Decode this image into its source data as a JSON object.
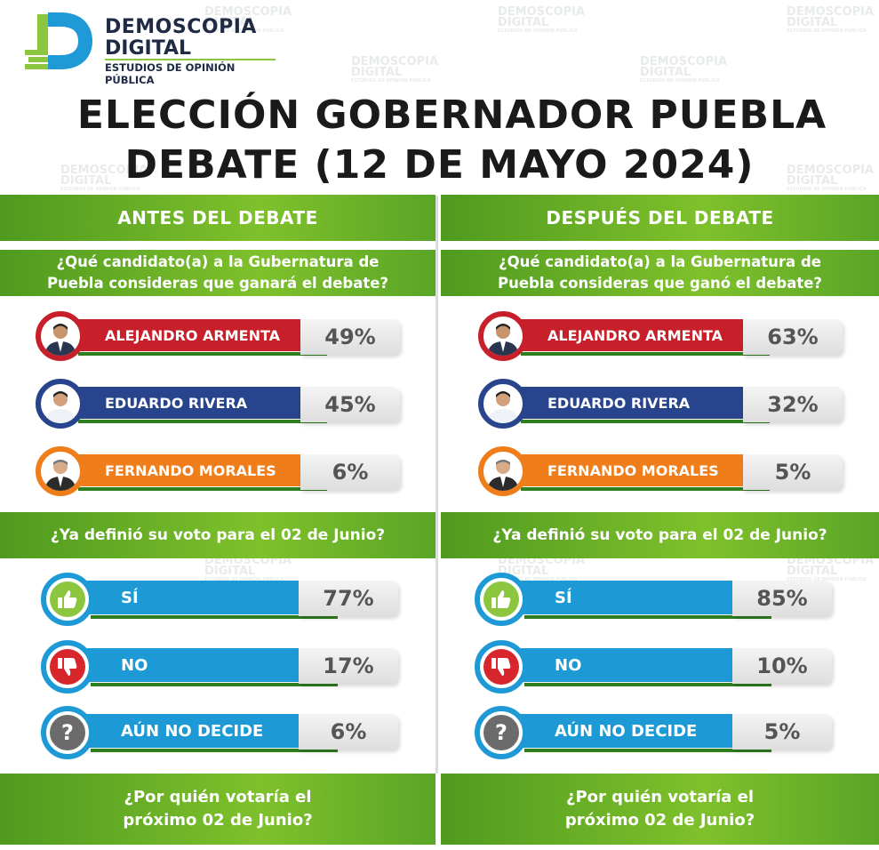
{
  "brand": {
    "line1": "DEMOSCOPIA",
    "line2": "DIGITAL",
    "line3": "ESTUDIOS DE OPINIÓN PÚBLICA"
  },
  "watermark": {
    "line1": "DEMOSCOPIA",
    "line2": "DIGITAL",
    "line3": "ESTUDIOS DE OPINIÓN PÚBLICA"
  },
  "title": {
    "line1": "ELECCIÓN GOBERNADOR PUEBLA",
    "line2": "DEBATE (12 DE MAYO 2024)"
  },
  "colors": {
    "green": "#6cb42a",
    "armenta": "#c8202a",
    "rivera": "#27448c",
    "morales": "#ef7d1a",
    "vote_blue": "#1d9ad6"
  },
  "before": {
    "header": "ANTES DEL DEBATE",
    "question1": "¿Qué candidato(a) a la Gubernatura de Puebla consideras que ganará el debate?",
    "candidates": [
      {
        "name": "ALEJANDRO ARMENTA",
        "pct": "49%"
      },
      {
        "name": "EDUARDO RIVERA",
        "pct": "45%"
      },
      {
        "name": "FERNANDO MORALES",
        "pct": "6%"
      }
    ],
    "question2": "¿Ya definió su voto para el 02 de Junio?",
    "votes": [
      {
        "label": "SÍ",
        "pct": "77%",
        "icon": "thumbs-up-icon"
      },
      {
        "label": "NO",
        "pct": "17%",
        "icon": "thumbs-down-icon"
      },
      {
        "label": "AÚN NO DECIDE",
        "pct": "6%",
        "icon": "question-icon"
      }
    ],
    "question3": "¿Por quién votaría el próximo 02 de Junio?"
  },
  "after": {
    "header": "DESPUÉS DEL DEBATE",
    "question1": "¿Qué candidato(a) a la Gubernatura de Puebla consideras que ganó el debate?",
    "candidates": [
      {
        "name": "ALEJANDRO ARMENTA",
        "pct": "63%"
      },
      {
        "name": "EDUARDO RIVERA",
        "pct": "32%"
      },
      {
        "name": "FERNANDO MORALES",
        "pct": "5%"
      }
    ],
    "question2": "¿Ya definió su voto para el 02 de Junio?",
    "votes": [
      {
        "label": "SÍ",
        "pct": "85%",
        "icon": "thumbs-up-icon"
      },
      {
        "label": "NO",
        "pct": "10%",
        "icon": "thumbs-down-icon"
      },
      {
        "label": "AÚN NO DECIDE",
        "pct": "5%",
        "icon": "question-icon"
      }
    ],
    "question3": "¿Por quién votaría el próximo 02 de Junio?"
  }
}
